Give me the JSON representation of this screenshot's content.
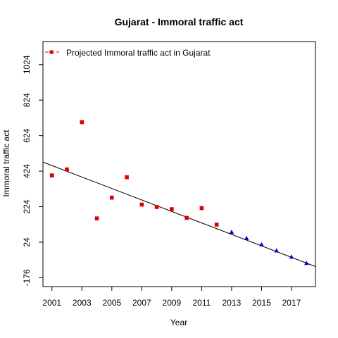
{
  "chart_data": {
    "type": "scatter",
    "title": "Gujarat  -  Immoral traffic act",
    "xlabel": "Year",
    "ylabel": "Immoral traffic act",
    "xlim": [
      2000.4,
      2018.6
    ],
    "ylim": [
      -226,
      1154
    ],
    "x_ticks": [
      2001,
      2003,
      2005,
      2007,
      2009,
      2011,
      2013,
      2015,
      2017
    ],
    "y_ticks": [
      -176,
      24,
      224,
      424,
      624,
      824,
      1024
    ],
    "legend": {
      "label": "Projected  Immoral traffic act  in  Gujarat",
      "position": "top-left"
    },
    "colors": {
      "observed": "#dd0000",
      "projected": "#0000cc",
      "trend": "#000000"
    },
    "series": [
      {
        "kind": "observed",
        "x": [
          2001,
          2002,
          2003,
          2004,
          2005,
          2006,
          2007,
          2008,
          2009,
          2010,
          2011,
          2012
        ],
        "y": [
          400,
          434,
          700,
          158,
          275,
          390,
          236,
          222,
          210,
          161,
          216,
          123
        ]
      },
      {
        "kind": "projected",
        "x": [
          2013,
          2014,
          2015,
          2016,
          2017,
          2018
        ],
        "y": [
          81,
          46,
          11,
          -24,
          -59,
          -94
        ]
      }
    ],
    "trend_line": {
      "x": [
        2000.4,
        2018.6
      ],
      "y": [
        475,
        -113
      ]
    }
  }
}
